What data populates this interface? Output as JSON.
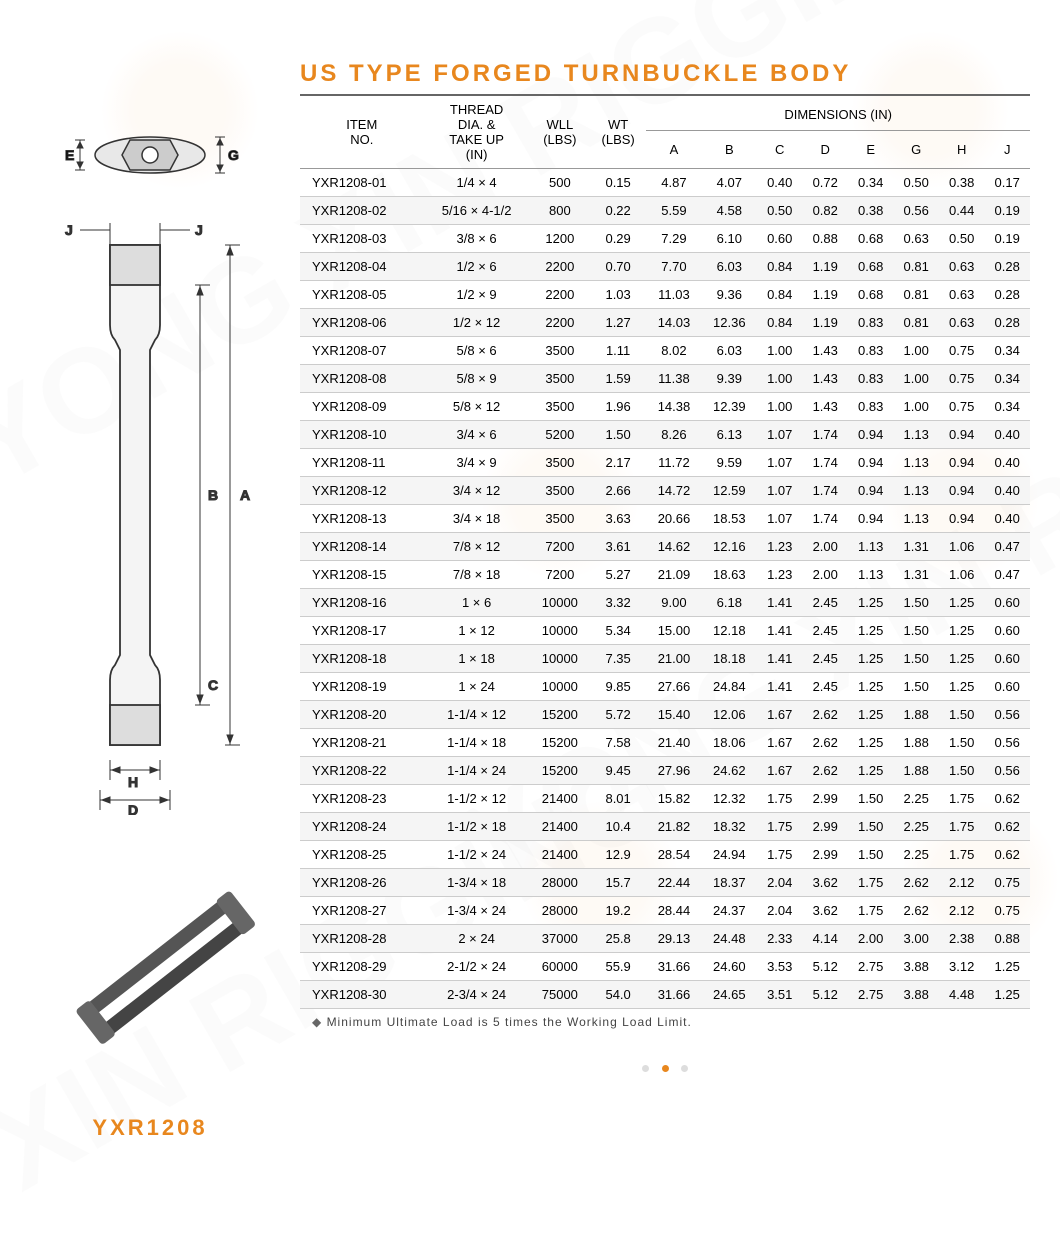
{
  "title": "US TYPE FORGED TURNBUCKLE BODY",
  "product_code": "YXR1208",
  "footnote": "Minimum Ultimate Load is 5 times the Working Load Limit.",
  "colors": {
    "accent": "#e8871e",
    "rule": "#666666",
    "row_alt": "#f5f5f5",
    "border": "#cccccc",
    "text": "#222222"
  },
  "headers": {
    "item": "ITEM\nNO.",
    "thread": "THREAD\nDIA. &\nTAKE UP\n(IN)",
    "wll": "WLL\n(LBS)",
    "wt": "WT\n(LBS)",
    "dim_group": "DIMENSIONS (IN)",
    "dims": [
      "A",
      "B",
      "C",
      "D",
      "E",
      "G",
      "H",
      "J"
    ]
  },
  "rows": [
    [
      "YXR1208-01",
      "1/4 × 4",
      "500",
      "0.15",
      "4.87",
      "4.07",
      "0.40",
      "0.72",
      "0.34",
      "0.50",
      "0.38",
      "0.17"
    ],
    [
      "YXR1208-02",
      "5/16 × 4-1/2",
      "800",
      "0.22",
      "5.59",
      "4.58",
      "0.50",
      "0.82",
      "0.38",
      "0.56",
      "0.44",
      "0.19"
    ],
    [
      "YXR1208-03",
      "3/8 × 6",
      "1200",
      "0.29",
      "7.29",
      "6.10",
      "0.60",
      "0.88",
      "0.68",
      "0.63",
      "0.50",
      "0.19"
    ],
    [
      "YXR1208-04",
      "1/2 × 6",
      "2200",
      "0.70",
      "7.70",
      "6.03",
      "0.84",
      "1.19",
      "0.68",
      "0.81",
      "0.63",
      "0.28"
    ],
    [
      "YXR1208-05",
      "1/2 × 9",
      "2200",
      "1.03",
      "11.03",
      "9.36",
      "0.84",
      "1.19",
      "0.68",
      "0.81",
      "0.63",
      "0.28"
    ],
    [
      "YXR1208-06",
      "1/2 × 12",
      "2200",
      "1.27",
      "14.03",
      "12.36",
      "0.84",
      "1.19",
      "0.83",
      "0.81",
      "0.63",
      "0.28"
    ],
    [
      "YXR1208-07",
      "5/8 × 6",
      "3500",
      "1.11",
      "8.02",
      "6.03",
      "1.00",
      "1.43",
      "0.83",
      "1.00",
      "0.75",
      "0.34"
    ],
    [
      "YXR1208-08",
      "5/8 × 9",
      "3500",
      "1.59",
      "11.38",
      "9.39",
      "1.00",
      "1.43",
      "0.83",
      "1.00",
      "0.75",
      "0.34"
    ],
    [
      "YXR1208-09",
      "5/8 × 12",
      "3500",
      "1.96",
      "14.38",
      "12.39",
      "1.00",
      "1.43",
      "0.83",
      "1.00",
      "0.75",
      "0.34"
    ],
    [
      "YXR1208-10",
      "3/4 × 6",
      "5200",
      "1.50",
      "8.26",
      "6.13",
      "1.07",
      "1.74",
      "0.94",
      "1.13",
      "0.94",
      "0.40"
    ],
    [
      "YXR1208-11",
      "3/4 × 9",
      "3500",
      "2.17",
      "11.72",
      "9.59",
      "1.07",
      "1.74",
      "0.94",
      "1.13",
      "0.94",
      "0.40"
    ],
    [
      "YXR1208-12",
      "3/4 × 12",
      "3500",
      "2.66",
      "14.72",
      "12.59",
      "1.07",
      "1.74",
      "0.94",
      "1.13",
      "0.94",
      "0.40"
    ],
    [
      "YXR1208-13",
      "3/4 × 18",
      "3500",
      "3.63",
      "20.66",
      "18.53",
      "1.07",
      "1.74",
      "0.94",
      "1.13",
      "0.94",
      "0.40"
    ],
    [
      "YXR1208-14",
      "7/8 × 12",
      "7200",
      "3.61",
      "14.62",
      "12.16",
      "1.23",
      "2.00",
      "1.13",
      "1.31",
      "1.06",
      "0.47"
    ],
    [
      "YXR1208-15",
      "7/8 × 18",
      "7200",
      "5.27",
      "21.09",
      "18.63",
      "1.23",
      "2.00",
      "1.13",
      "1.31",
      "1.06",
      "0.47"
    ],
    [
      "YXR1208-16",
      "1 × 6",
      "10000",
      "3.32",
      "9.00",
      "6.18",
      "1.41",
      "2.45",
      "1.25",
      "1.50",
      "1.25",
      "0.60"
    ],
    [
      "YXR1208-17",
      "1 × 12",
      "10000",
      "5.34",
      "15.00",
      "12.18",
      "1.41",
      "2.45",
      "1.25",
      "1.50",
      "1.25",
      "0.60"
    ],
    [
      "YXR1208-18",
      "1 × 18",
      "10000",
      "7.35",
      "21.00",
      "18.18",
      "1.41",
      "2.45",
      "1.25",
      "1.50",
      "1.25",
      "0.60"
    ],
    [
      "YXR1208-19",
      "1 × 24",
      "10000",
      "9.85",
      "27.66",
      "24.84",
      "1.41",
      "2.45",
      "1.25",
      "1.50",
      "1.25",
      "0.60"
    ],
    [
      "YXR1208-20",
      "1-1/4 × 12",
      "15200",
      "5.72",
      "15.40",
      "12.06",
      "1.67",
      "2.62",
      "1.25",
      "1.88",
      "1.50",
      "0.56"
    ],
    [
      "YXR1208-21",
      "1-1/4 × 18",
      "15200",
      "7.58",
      "21.40",
      "18.06",
      "1.67",
      "2.62",
      "1.25",
      "1.88",
      "1.50",
      "0.56"
    ],
    [
      "YXR1208-22",
      "1-1/4 × 24",
      "15200",
      "9.45",
      "27.96",
      "24.62",
      "1.67",
      "2.62",
      "1.25",
      "1.88",
      "1.50",
      "0.56"
    ],
    [
      "YXR1208-23",
      "1-1/2 × 12",
      "21400",
      "8.01",
      "15.82",
      "12.32",
      "1.75",
      "2.99",
      "1.50",
      "2.25",
      "1.75",
      "0.62"
    ],
    [
      "YXR1208-24",
      "1-1/2 × 18",
      "21400",
      "10.4",
      "21.82",
      "18.32",
      "1.75",
      "2.99",
      "1.50",
      "2.25",
      "1.75",
      "0.62"
    ],
    [
      "YXR1208-25",
      "1-1/2 × 24",
      "21400",
      "12.9",
      "28.54",
      "24.94",
      "1.75",
      "2.99",
      "1.50",
      "2.25",
      "1.75",
      "0.62"
    ],
    [
      "YXR1208-26",
      "1-3/4 × 18",
      "28000",
      "15.7",
      "22.44",
      "18.37",
      "2.04",
      "3.62",
      "1.75",
      "2.62",
      "2.12",
      "0.75"
    ],
    [
      "YXR1208-27",
      "1-3/4 × 24",
      "28000",
      "19.2",
      "28.44",
      "24.37",
      "2.04",
      "3.62",
      "1.75",
      "2.62",
      "2.12",
      "0.75"
    ],
    [
      "YXR1208-28",
      "2 × 24",
      "37000",
      "25.8",
      "29.13",
      "24.48",
      "2.33",
      "4.14",
      "2.00",
      "3.00",
      "2.38",
      "0.88"
    ],
    [
      "YXR1208-29",
      "2-1/2 × 24",
      "60000",
      "55.9",
      "31.66",
      "24.60",
      "3.53",
      "5.12",
      "2.75",
      "3.88",
      "3.12",
      "1.25"
    ],
    [
      "YXR1208-30",
      "2-3/4 × 24",
      "75000",
      "54.0",
      "31.66",
      "24.65",
      "3.51",
      "5.12",
      "2.75",
      "3.88",
      "4.48",
      "1.25"
    ]
  ],
  "diagram_labels": {
    "top_left": "E",
    "top_right": "G",
    "side_J1": "J",
    "side_J2": "J",
    "side_A": "A",
    "side_B": "B",
    "side_C": "C",
    "side_H": "H",
    "side_D": "D"
  },
  "pager": {
    "count": 3,
    "active": 1
  }
}
